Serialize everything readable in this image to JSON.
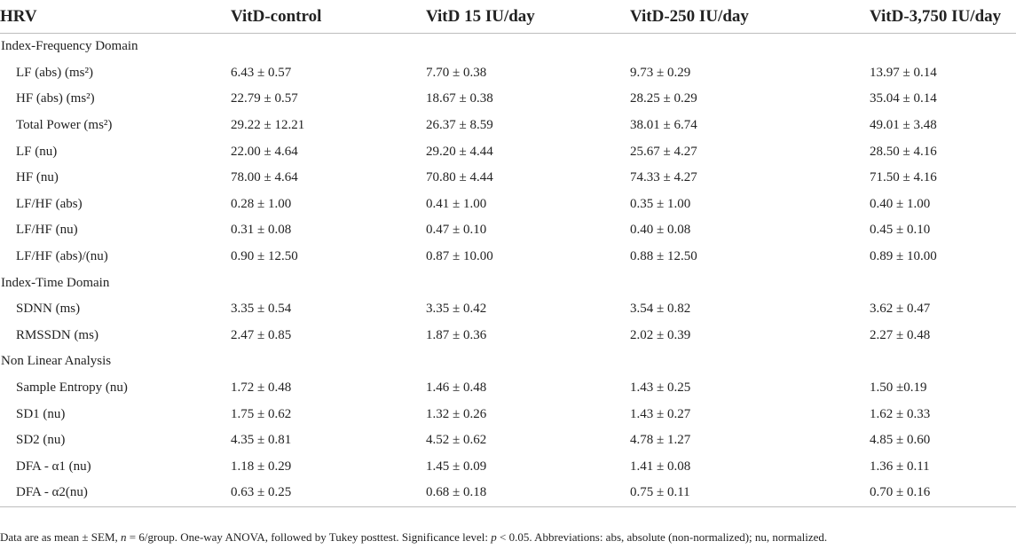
{
  "table": {
    "headers": [
      "HRV",
      "VitD-control",
      "VitD 15 IU/day",
      "VitD-250 IU/day",
      "VitD-3,750 IU/day"
    ],
    "sections": [
      {
        "title": "Index-Frequency Domain",
        "rows": [
          {
            "label": "LF (abs) (ms²)",
            "values": [
              "6.43 ± 0.57",
              "7.70 ± 0.38",
              "9.73 ± 0.29",
              "13.97 ± 0.14"
            ]
          },
          {
            "label": "HF (abs) (ms²)",
            "values": [
              "22.79 ± 0.57",
              "18.67 ± 0.38",
              "28.25 ± 0.29",
              "35.04 ± 0.14"
            ]
          },
          {
            "label": "Total Power (ms²)",
            "values": [
              "29.22 ± 12.21",
              "26.37 ± 8.59",
              "38.01 ± 6.74",
              "49.01 ± 3.48"
            ]
          },
          {
            "label": "LF (nu)",
            "values": [
              "22.00 ± 4.64",
              "29.20 ± 4.44",
              "25.67 ± 4.27",
              "28.50 ± 4.16"
            ]
          },
          {
            "label": "HF (nu)",
            "values": [
              "78.00 ± 4.64",
              "70.80 ± 4.44",
              "74.33 ± 4.27",
              "71.50 ± 4.16"
            ]
          },
          {
            "label": "LF/HF (abs)",
            "values": [
              "0.28 ± 1.00",
              "0.41 ± 1.00",
              "0.35 ± 1.00",
              "0.40 ± 1.00"
            ]
          },
          {
            "label": "LF/HF (nu)",
            "values": [
              "0.31 ± 0.08",
              "0.47 ± 0.10",
              "0.40 ± 0.08",
              "0.45 ± 0.10"
            ]
          },
          {
            "label": "LF/HF (abs)/(nu)",
            "values": [
              "0.90 ± 12.50",
              "0.87 ± 10.00",
              "0.88 ± 12.50",
              "0.89 ± 10.00"
            ]
          }
        ]
      },
      {
        "title": "Index-Time Domain",
        "rows": [
          {
            "label": "SDNN (ms)",
            "values": [
              "3.35 ± 0.54",
              "3.35 ± 0.42",
              "3.54 ± 0.82",
              "3.62 ± 0.47"
            ]
          },
          {
            "label": "RMSSDN (ms)",
            "values": [
              "2.47 ± 0.85",
              "1.87 ± 0.36",
              "2.02 ± 0.39",
              "2.27 ± 0.48"
            ]
          }
        ]
      },
      {
        "title": "Non Linear Analysis",
        "rows": [
          {
            "label": "Sample Entropy (nu)",
            "values": [
              "1.72 ± 0.48",
              "1.46 ± 0.48",
              "1.43 ± 0.25",
              "1.50 ±0.19"
            ]
          },
          {
            "label": "SD1 (nu)",
            "values": [
              "1.75 ± 0.62",
              "1.32 ± 0.26",
              "1.43 ± 0.27",
              "1.62 ± 0.33"
            ]
          },
          {
            "label": "SD2 (nu)",
            "values": [
              "4.35 ± 0.81",
              "4.52 ± 0.62",
              "4.78 ± 1.27",
              "4.85 ± 0.60"
            ]
          },
          {
            "label": "DFA - α1 (nu)",
            "values": [
              "1.18 ± 0.29",
              "1.45 ± 0.09",
              "1.41 ± 0.08",
              "1.36 ± 0.11"
            ]
          },
          {
            "label": "DFA - α2(nu)",
            "values": [
              "0.63 ± 0.25",
              "0.68 ± 0.18",
              "0.75 ± 0.11",
              "0.70 ± 0.16"
            ]
          }
        ]
      }
    ]
  },
  "footnote": {
    "part1": "Data are as mean ± SEM, ",
    "n_symbol": "n",
    "part2": " = 6/group. One-way ANOVA, followed by Tukey posttest. Significance level: ",
    "p_symbol": "p",
    "part3": " < 0.05. Abbreviations: abs, absolute (non-normalized); nu, normalized."
  }
}
